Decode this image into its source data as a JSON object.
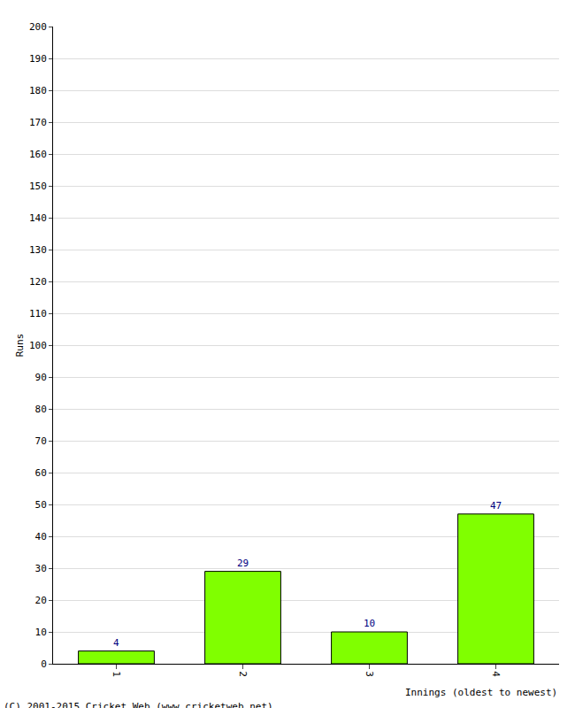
{
  "chart_data": {
    "type": "bar",
    "categories": [
      "1",
      "2",
      "3",
      "4"
    ],
    "values": [
      4,
      29,
      10,
      47
    ],
    "color": "#80ff00",
    "ylim": [
      0,
      200
    ],
    "yticks": [
      0,
      10,
      20,
      30,
      40,
      50,
      60,
      70,
      80,
      90,
      100,
      110,
      120,
      130,
      140,
      150,
      160,
      170,
      180,
      190,
      200
    ],
    "grid": true,
    "data_labels": true,
    "x_label": "Innings (oldest to newest)",
    "y_label": "Runs",
    "annotations": [
      "(C) 2001-2015 Cricket Web (www.cricketweb.net)"
    ]
  }
}
